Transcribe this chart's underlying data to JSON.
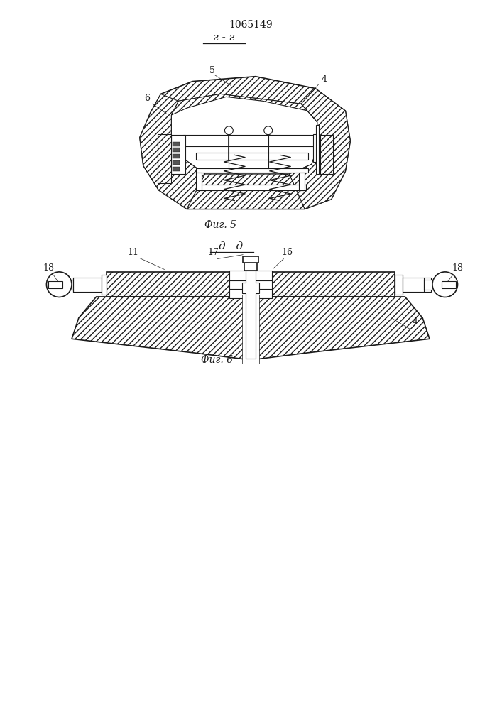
{
  "patent_number": "1065149",
  "fig5_section_label": "г - г",
  "fig5_caption": "Фиг. 5",
  "fig6_section_label": "д - д",
  "fig6_caption": "Фиг. 6",
  "bg_color": "#ffffff",
  "line_color": "#1a1a1a"
}
